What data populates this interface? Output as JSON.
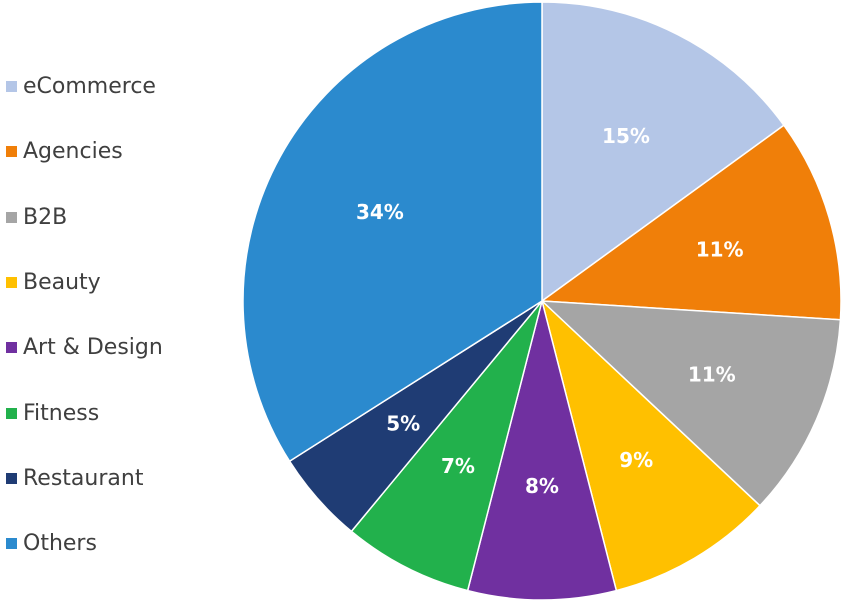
{
  "chart_data": {
    "type": "pie",
    "categories": [
      "eCommerce",
      "Agencies",
      "B2B",
      "Beauty",
      "Art & Design",
      "Fitness",
      "Restaurant",
      "Others"
    ],
    "values": [
      15,
      11,
      11,
      9,
      8,
      7,
      5,
      34
    ],
    "value_labels": [
      "15%",
      "11%",
      "11%",
      "9%",
      "8%",
      "7%",
      "5%",
      "34%"
    ],
    "colors": [
      "#b4c6e7",
      "#f07f09",
      "#a5a5a5",
      "#ffc000",
      "#7030a0",
      "#22b14c",
      "#1f3c74",
      "#2b8ace"
    ],
    "start": "12 o'clock",
    "direction": "clockwise",
    "legend": "left",
    "title": ""
  }
}
